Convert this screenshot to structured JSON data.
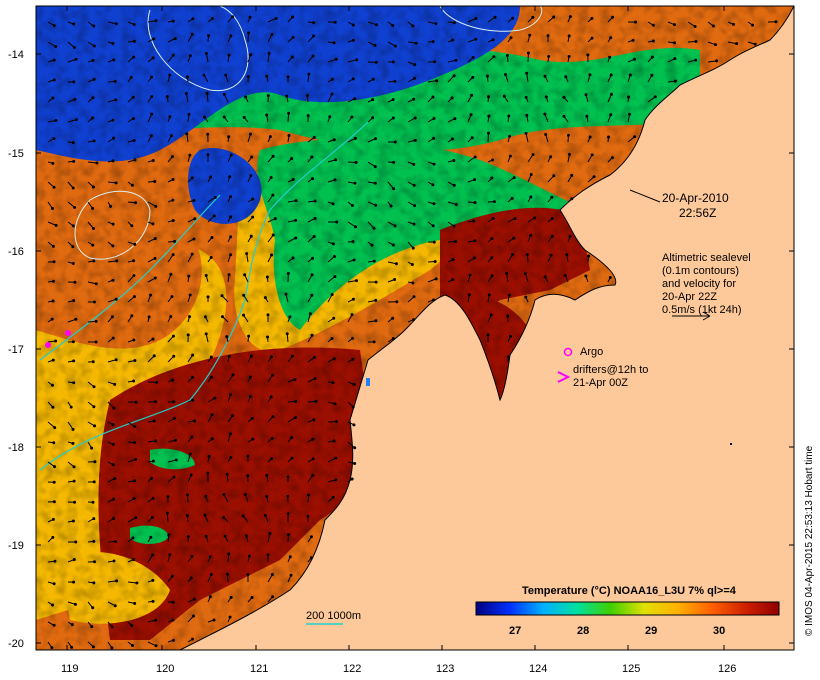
{
  "map": {
    "lon_ticks": [
      "119",
      "120",
      "121",
      "122",
      "123",
      "124",
      "125",
      "126"
    ],
    "lat_ticks": [
      "-14",
      "-15",
      "-16",
      "-17",
      "-18",
      "-19",
      "-20"
    ],
    "lon_range": [
      118.7,
      126.7
    ],
    "lat_range": [
      -13.8,
      -20.05
    ],
    "colors": {
      "land": "#fdc99a",
      "sst_hot": "#9a0f00",
      "sst_warm": "#e06a10",
      "sst_mid": "#f4b800",
      "sst_cool": "#00c050",
      "sst_cold": "#1040d0",
      "contour": "#d8f0f0",
      "isobath": "#20d0d0",
      "argo": "#ff00ff"
    }
  },
  "annotations": {
    "date_line1": "20-Apr-2010",
    "date_line2": "22:56Z",
    "alt_line1": "Altimetric sealevel",
    "alt_line2": "(0.1m contours)",
    "alt_line3": "and velocity for",
    "alt_line4": "20-Apr 22Z",
    "alt_line5": "0.5m/s (1kt 24h)",
    "argo_label": "Argo",
    "drifter_line1": "drifters@12h to",
    "drifter_line2": "21-Apr 00Z",
    "bathy_label": "200  1000m"
  },
  "colorbar": {
    "title": "Temperature (°C) NOAA16_L3U 7% ql>=4",
    "ticks": [
      "27",
      "28",
      "29",
      "30"
    ],
    "stops": [
      "#000080",
      "#0030ff",
      "#00b0ff",
      "#00e0a0",
      "#40d000",
      "#e0e000",
      "#ffb000",
      "#ff6000",
      "#d02000",
      "#900000"
    ]
  },
  "credit": "© IMOS 04-Apr-2015 22:53:13 Hobart time"
}
